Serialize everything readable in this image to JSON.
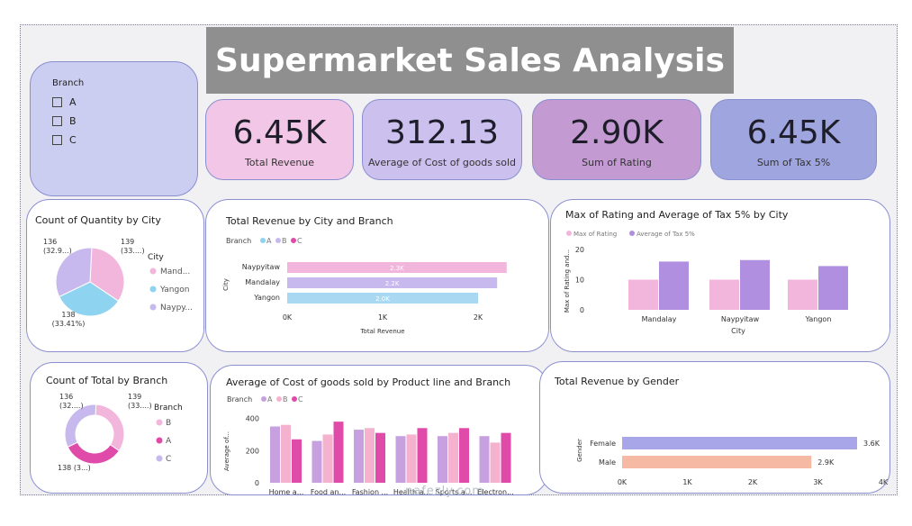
{
  "title": "Supermarket Sales Analysis",
  "slicer": {
    "label": "Branch",
    "options": [
      "A",
      "B",
      "C"
    ]
  },
  "kpis": [
    {
      "value": "6.45K",
      "caption": "Total Revenue",
      "color": "#f2c6e6"
    },
    {
      "value": "312.13",
      "caption": "Average of Cost of goods sold",
      "color": "#ccc0ee"
    },
    {
      "value": "2.90K",
      "caption": "Sum of Rating",
      "color": "#c39ad2"
    },
    {
      "value": "6.45K",
      "caption": "Sum of Tax 5%",
      "color": "#9fa5de"
    }
  ],
  "colors": {
    "pink": "#f2b6dc",
    "lavender": "#c7b8ee",
    "purple": "#a98bd8",
    "blue": "#8ed3f0",
    "magenta": "#e04aa8",
    "salmon": "#f6b9a4",
    "violet": "#a8a6e8"
  },
  "chart_data": [
    {
      "type": "pie",
      "title": "Count of Quantity by City",
      "legend_title": "City",
      "categories": [
        "Mand...",
        "Yangon",
        "Naypy..."
      ],
      "values": [
        139,
        138,
        136
      ],
      "labels": [
        "139\n(33....)",
        "138\n(33.41%)",
        "136\n(32.9...)"
      ],
      "colors": [
        "#f2b6dc",
        "#8ed3f0",
        "#c7b8ee"
      ]
    },
    {
      "type": "bar",
      "title": "Total Revenue by City and Branch",
      "legend_title": "Branch",
      "legend": [
        "A",
        "B",
        "C"
      ],
      "categories": [
        "Naypyitaw",
        "Mandalay",
        "Yangon"
      ],
      "values": [
        2.3,
        2.2,
        2.0
      ],
      "data_labels": [
        "2.3K",
        "2.2K",
        "2.0K"
      ],
      "colors": [
        "#f2b6dc",
        "#c7b8ee",
        "#a9d8f2"
      ],
      "xticks": [
        "0K",
        "1K",
        "2K"
      ],
      "xlabel": "Total Revenue",
      "ylabel": "City",
      "xlim": [
        0,
        2.5
      ]
    },
    {
      "type": "bar",
      "title": "Max of Rating and Average of Tax 5% by City",
      "series": [
        {
          "name": "Max of Rating",
          "values": [
            10,
            10,
            10
          ],
          "color": "#f2b6dc"
        },
        {
          "name": "Average of Tax 5%",
          "values": [
            16,
            16.5,
            14.5
          ],
          "color": "#b08fe0"
        }
      ],
      "categories": [
        "Mandalay",
        "Naypyitaw",
        "Yangon"
      ],
      "yticks": [
        "20",
        "10",
        "0"
      ],
      "xlabel": "City",
      "ylabel": "Max of Rating and...",
      "ylim": [
        0,
        20
      ]
    },
    {
      "type": "pie",
      "title": "Count of Total by Branch",
      "legend_title": "Branch",
      "categories": [
        "B",
        "A",
        "C"
      ],
      "values": [
        139,
        138,
        136
      ],
      "labels": [
        "139\n(33....)",
        "138 (3...)",
        "136\n(32....)"
      ],
      "colors": [
        "#f2b6dc",
        "#e04aa8",
        "#c7b8ee"
      ]
    },
    {
      "type": "bar",
      "title": "Average of Cost of goods sold by Product line and Branch",
      "legend_title": "Branch",
      "series": [
        {
          "name": "A",
          "values": [
            350,
            260,
            330,
            290,
            290,
            290
          ],
          "color": "#c7a0e0"
        },
        {
          "name": "B",
          "values": [
            360,
            300,
            340,
            300,
            310,
            250
          ],
          "color": "#f4b2cf"
        },
        {
          "name": "C",
          "values": [
            270,
            380,
            310,
            340,
            340,
            310
          ],
          "color": "#e04aa8"
        }
      ],
      "categories": [
        "Home a...",
        "Food an...",
        "Fashion ...",
        "Health a...",
        "Sports a...",
        "Electron..."
      ],
      "yticks": [
        "400",
        "200",
        "0"
      ],
      "ylabel": "Average of...",
      "ylim": [
        0,
        420
      ]
    },
    {
      "type": "bar",
      "title": "Total Revenue by Gender",
      "categories": [
        "Female",
        "Male"
      ],
      "values": [
        3.6,
        2.9
      ],
      "data_labels": [
        "3.6K",
        "2.9K"
      ],
      "colors": [
        "#a8a6e8",
        "#f6b9a4"
      ],
      "xticks": [
        "0K",
        "1K",
        "2K",
        "3K",
        "4K"
      ],
      "ylabel": "Gender",
      "xlim": [
        0,
        4
      ]
    }
  ],
  "watermark": "nafezly.com"
}
